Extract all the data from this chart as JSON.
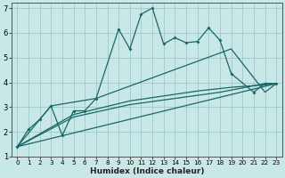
{
  "xlabel": "Humidex (Indice chaleur)",
  "xlim": [
    -0.5,
    23.5
  ],
  "ylim": [
    1,
    7.2
  ],
  "background_color": "#c8e8e8",
  "grid_color": "#a0c8c8",
  "line_color": "#1a6666",
  "yticks": [
    1,
    2,
    3,
    4,
    5,
    6,
    7
  ],
  "xticks": [
    0,
    1,
    2,
    3,
    4,
    5,
    6,
    7,
    8,
    9,
    10,
    11,
    12,
    13,
    14,
    15,
    16,
    17,
    18,
    19,
    20,
    21,
    22,
    23
  ],
  "series1_x": [
    0,
    1,
    2,
    3,
    4,
    5,
    6,
    7,
    9,
    10,
    11,
    12,
    13,
    14,
    15,
    16,
    17,
    18,
    19,
    21,
    22,
    23
  ],
  "series1_y": [
    1.4,
    2.1,
    2.5,
    3.05,
    1.85,
    2.85,
    2.85,
    3.35,
    6.15,
    5.35,
    6.75,
    7.0,
    5.55,
    5.8,
    5.6,
    5.65,
    6.2,
    5.7,
    4.35,
    3.6,
    3.95,
    3.95
  ],
  "series2_x": [
    0,
    3,
    7,
    19,
    22,
    23
  ],
  "series2_y": [
    1.4,
    3.05,
    3.35,
    5.35,
    3.6,
    3.95
  ],
  "series3_x": [
    0,
    23
  ],
  "series3_y": [
    1.4,
    3.95
  ],
  "series4_x": [
    0,
    5,
    10,
    13,
    16,
    19,
    22,
    23
  ],
  "series4_y": [
    1.4,
    2.7,
    3.25,
    3.45,
    3.65,
    3.8,
    3.9,
    3.95
  ],
  "series5_x": [
    0,
    5,
    10,
    14,
    18,
    22,
    23
  ],
  "series5_y": [
    1.4,
    2.6,
    3.1,
    3.35,
    3.6,
    3.95,
    3.95
  ]
}
